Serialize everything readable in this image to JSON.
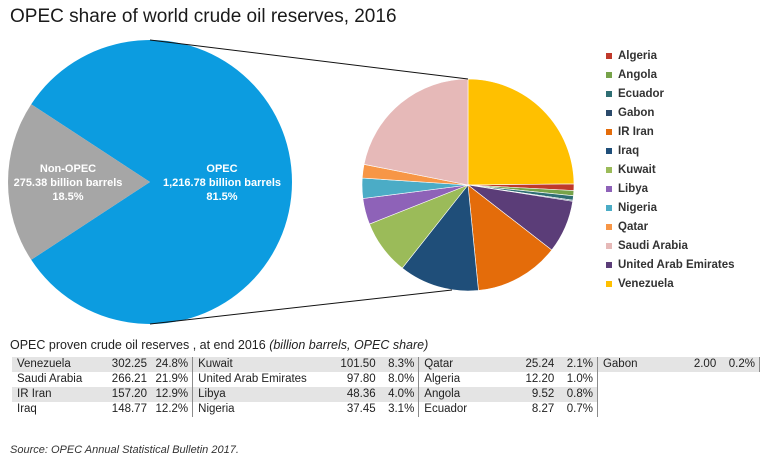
{
  "title": "OPEC share of world crude oil reserves, 2016",
  "colors": {
    "opec": "#0c9ce0",
    "non_opec": "#a6a6a6",
    "connector": "#111111"
  },
  "chart_data": [
    {
      "type": "pie",
      "name": "world",
      "slices": [
        {
          "label": "OPEC",
          "value": 1216.78,
          "value_text": "1,216.78 billion barrels",
          "share_text": "81.5%"
        },
        {
          "label": "Non-OPEC",
          "value": 275.38,
          "value_text": "275.38 billion barrels",
          "share_text": "18.5%"
        }
      ]
    },
    {
      "type": "pie",
      "name": "opec",
      "slices": [
        {
          "label": "Algeria",
          "value": 12.2,
          "color": "#c0392b"
        },
        {
          "label": "Angola",
          "value": 9.52,
          "color": "#77a34a"
        },
        {
          "label": "Ecuador",
          "value": 8.27,
          "color": "#2f6e73"
        },
        {
          "label": "Gabon",
          "value": 2.0,
          "color": "#2b4a6b"
        },
        {
          "label": "IR Iran",
          "value": 157.2,
          "color": "#e46c0a"
        },
        {
          "label": "Iraq",
          "value": 148.77,
          "color": "#1f4e79"
        },
        {
          "label": "Kuwait",
          "value": 101.5,
          "color": "#9bbb59"
        },
        {
          "label": "Libya",
          "value": 48.36,
          "color": "#8e62b8"
        },
        {
          "label": "Nigeria",
          "value": 37.45,
          "color": "#4bacc6"
        },
        {
          "label": "Qatar",
          "value": 25.24,
          "color": "#f79646"
        },
        {
          "label": "Saudi Arabia",
          "value": 266.21,
          "color": "#e6b9b8"
        },
        {
          "label": "United Arab Emirates",
          "value": 97.8,
          "color": "#5b3d78"
        },
        {
          "label": "Venezuela",
          "value": 302.25,
          "color": "#ffc000"
        }
      ],
      "legend_position": "right"
    }
  ],
  "table": {
    "heading": "OPEC proven crude oil reserves , at end 2016",
    "heading_note": "(billion barrels, OPEC share)",
    "columns": [
      [
        {
          "country": "Venezuela",
          "value": "302.25",
          "share": "24.8%"
        },
        {
          "country": "Saudi Arabia",
          "value": "266.21",
          "share": "21.9%"
        },
        {
          "country": "IR Iran",
          "value": "157.20",
          "share": "12.9%"
        },
        {
          "country": "Iraq",
          "value": "148.77",
          "share": "12.2%"
        }
      ],
      [
        {
          "country": "Kuwait",
          "value": "101.50",
          "share": "8.3%"
        },
        {
          "country": "United Arab Emirates",
          "value": "97.80",
          "share": "8.0%"
        },
        {
          "country": "Libya",
          "value": "48.36",
          "share": "4.0%"
        },
        {
          "country": "Nigeria",
          "value": "37.45",
          "share": "3.1%"
        }
      ],
      [
        {
          "country": "Qatar",
          "value": "25.24",
          "share": "2.1%"
        },
        {
          "country": "Algeria",
          "value": "12.20",
          "share": "1.0%"
        },
        {
          "country": "Angola",
          "value": "9.52",
          "share": "0.8%"
        },
        {
          "country": "Ecuador",
          "value": "8.27",
          "share": "0.7%"
        }
      ],
      [
        {
          "country": "Gabon",
          "value": "2.00",
          "share": "0.2%"
        }
      ]
    ]
  },
  "source": "Source: OPEC Annual Statistical Bulletin 2017."
}
